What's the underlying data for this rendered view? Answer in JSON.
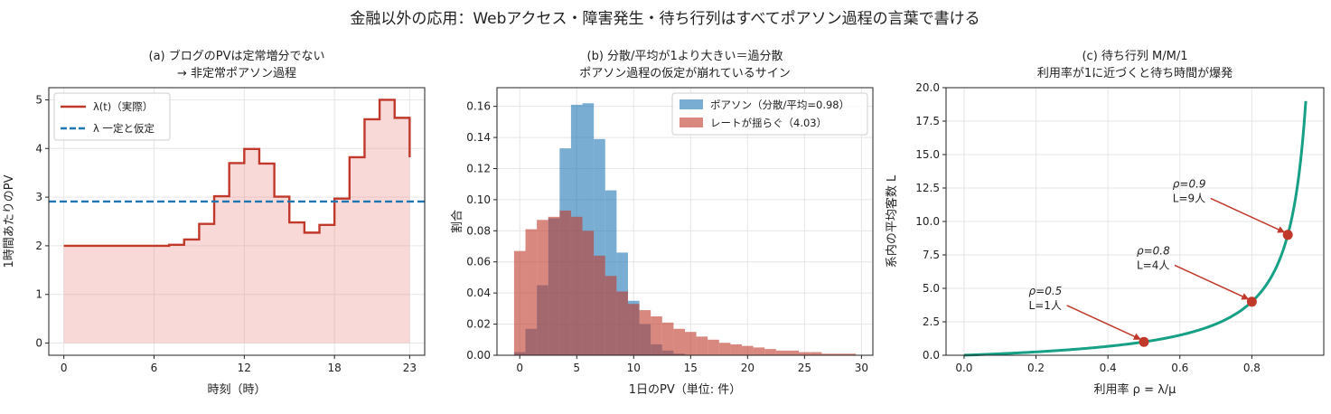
{
  "suptitle": "金融以外の応用：Webアクセス・障害発生・待ち行列はすべてポアソン過程の言葉で書ける",
  "chart_data": [
    {
      "type": "line",
      "id": "a",
      "title_lines": [
        "(a) ブログのPVは定常増分でない",
        "→ 非定常ポアソン過程"
      ],
      "xlabel": "時刻（時）",
      "ylabel": "1時間あたりのPV",
      "xlim": [
        -1,
        24
      ],
      "ylim": [
        -0.25,
        5.25
      ],
      "xticks": [
        0,
        6,
        12,
        18,
        23
      ],
      "yticks": [
        0,
        1,
        2,
        3,
        4,
        5
      ],
      "grid": true,
      "legend_position": "top-left",
      "series": [
        {
          "name": "λ(t)（実際）",
          "kind": "step",
          "color": "#c0392b",
          "x": [
            0,
            1,
            2,
            3,
            4,
            5,
            6,
            7,
            8,
            9,
            10,
            11,
            12,
            13,
            14,
            15,
            16,
            17,
            18,
            19,
            20,
            21,
            22,
            23
          ],
          "values": [
            2.0,
            2.0,
            2.0,
            2.0,
            2.0,
            2.0,
            2.0,
            2.02,
            2.13,
            2.45,
            3.02,
            3.7,
            3.99,
            3.69,
            3.01,
            2.48,
            2.27,
            2.43,
            2.97,
            3.82,
            4.6,
            5.0,
            4.63,
            3.82
          ]
        },
        {
          "name": "λ 一定と仮定",
          "kind": "hline",
          "color": "#1f77b4",
          "y": 2.91
        }
      ]
    },
    {
      "type": "bar",
      "id": "b",
      "title_lines": [
        "(b) 分散/平均が1より大きい＝過分散",
        "ポアソン過程の仮定が崩れているサイン"
      ],
      "xlabel": "1日のPV（単位: 件）",
      "ylabel": "割合",
      "xlim": [
        -2,
        31
      ],
      "ylim": [
        0,
        0.172
      ],
      "xticks": [
        0,
        5,
        10,
        15,
        20,
        25,
        30
      ],
      "yticks": [
        0.0,
        0.02,
        0.04,
        0.06,
        0.08,
        0.1,
        0.12,
        0.14,
        0.16
      ],
      "grid": true,
      "legend_position": "top-right",
      "bin_start": -0.5,
      "bin_width": 1,
      "series": [
        {
          "name": "ポアソン（分散/平均=0.98）",
          "color": "#1f77b4",
          "values": [
            0.002,
            0.017,
            0.045,
            0.088,
            0.133,
            0.161,
            0.162,
            0.139,
            0.106,
            0.066,
            0.035,
            0.02,
            0.007,
            0.003,
            0.001,
            0,
            0,
            0,
            0,
            0,
            0,
            0,
            0,
            0,
            0,
            0,
            0,
            0,
            0,
            0
          ]
        },
        {
          "name": "レートが揺らぐ（4.03）",
          "color": "#c0392b",
          "values": [
            0.067,
            0.081,
            0.087,
            0.089,
            0.093,
            0.089,
            0.08,
            0.064,
            0.051,
            0.041,
            0.033,
            0.029,
            0.025,
            0.021,
            0.017,
            0.015,
            0.012,
            0.01,
            0.008,
            0.007,
            0.006,
            0.005,
            0.004,
            0.003,
            0.003,
            0.002,
            0.002,
            0.001,
            0.001,
            0.001
          ]
        }
      ]
    },
    {
      "type": "line",
      "id": "c",
      "title_lines": [
        "(c) 待ち行列 M/M/1",
        "利用率が1に近づくと待ち時間が爆発"
      ],
      "xlabel": "利用率 ρ = λ/μ",
      "ylabel": "系内の平均客数 L",
      "xlim": [
        -0.05,
        1.0
      ],
      "ylim": [
        0,
        20
      ],
      "xticks": [
        0.0,
        0.2,
        0.4,
        0.6,
        0.8
      ],
      "tick_labels_x": [
        "0.0",
        "0.2",
        "0.4",
        "0.6",
        "0.8"
      ],
      "yticks": [
        0.0,
        2.5,
        5.0,
        7.5,
        10.0,
        12.5,
        15.0,
        17.5,
        20.0
      ],
      "tick_labels_y": [
        "0.0",
        "2.5",
        "5.0",
        "7.5",
        "10.0",
        "12.5",
        "15.0",
        "17.5",
        "20.0"
      ],
      "grid": true,
      "curve": {
        "color": "#16a085",
        "rho_start": 0.0,
        "rho_end": 0.95,
        "formula": "L = rho/(1-rho)"
      },
      "points": [
        {
          "rho": 0.5,
          "L": 1,
          "label_lines": [
            "ρ=0.5",
            "L=1人"
          ],
          "label_at": [
            0.18,
            4.0
          ]
        },
        {
          "rho": 0.8,
          "L": 4,
          "label_lines": [
            "ρ=0.8",
            "L=4人"
          ],
          "label_at": [
            0.48,
            7.0
          ]
        },
        {
          "rho": 0.9,
          "L": 9,
          "label_lines": [
            "ρ=0.9",
            "L=9人"
          ],
          "label_at": [
            0.58,
            12.0
          ]
        }
      ],
      "point_color": "#c0392b"
    }
  ]
}
